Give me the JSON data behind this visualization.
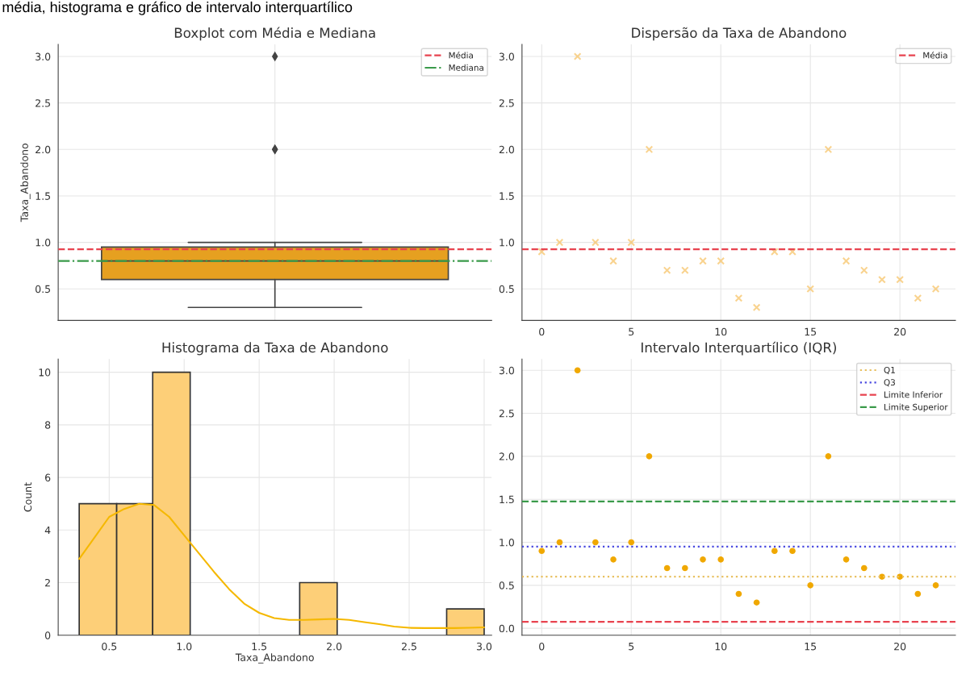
{
  "chart_data": [
    {
      "type": "box",
      "title": "Boxplot com Média e Mediana",
      "ylabel": "Taxa_Abandono",
      "categories": [
        null
      ],
      "color": "#e6a020",
      "boxes": [
        {
          "low": 0.3,
          "q1": 0.6,
          "median": 0.8,
          "q3": 0.95,
          "high": 1.0,
          "outliers": [
            3.0,
            2.0,
            2.0
          ]
        }
      ],
      "ylim": [
        0.16,
        3.13
      ],
      "yticks": [
        0.5,
        {
          "value": 1,
          "label": "1.0"
        },
        1.5,
        {
          "value": 2,
          "label": "2.0"
        },
        2.5,
        {
          "value": 3,
          "label": "3.0"
        }
      ],
      "grid": true,
      "legend": "top right",
      "annotations": [
        "média, histograma e gráfico de intervalo interquartílico"
      ],
      "ref_lines": [
        {
          "axis": "y",
          "value": 0.926,
          "label": "Média",
          "color": "#e8434f",
          "line_style": "dashed"
        },
        {
          "axis": "y",
          "value": 0.8,
          "label": "Mediana",
          "color": "#3a9a4a",
          "line_style": "dashdot"
        }
      ]
    },
    {
      "type": "scatter",
      "title": "Dispersão da Taxa de Abandono",
      "marker": "cross",
      "color": "#f7c060",
      "x": [
        0,
        1,
        2,
        3,
        4,
        5,
        6,
        7,
        8,
        9,
        10,
        11,
        12,
        13,
        14,
        15,
        16,
        17,
        18,
        19,
        20,
        21,
        22
      ],
      "values": [
        0.9,
        1.0,
        3.0,
        1.0,
        0.8,
        1.0,
        2.0,
        0.7,
        0.7,
        0.8,
        0.8,
        0.4,
        0.3,
        0.9,
        0.9,
        0.5,
        2.0,
        0.8,
        0.7,
        0.6,
        0.6,
        0.4,
        0.5
      ],
      "xlim": [
        -1.1,
        23.1
      ],
      "xticks": [
        0,
        5,
        10,
        15,
        20
      ],
      "ylim": [
        0.16,
        3.13
      ],
      "yticks": [
        0.5,
        {
          "value": 1,
          "label": "1.0"
        },
        1.5,
        {
          "value": 2,
          "label": "2.0"
        },
        2.5,
        {
          "value": 3,
          "label": "3.0"
        }
      ],
      "grid": true,
      "legend": "top right",
      "ref_lines": [
        {
          "axis": "y",
          "value": 0.926,
          "label": "Média",
          "color": "#e8434f",
          "line_style": "dashed"
        }
      ]
    },
    {
      "type": "histogram",
      "title": "Histograma da Taxa de Abandono",
      "xlabel": "Taxa_Abandono",
      "ylabel": "Count",
      "color": "#fdcf78",
      "bins": [
        0.3,
        0.55,
        0.79,
        1.04,
        1.77,
        2.02,
        2.75,
        3.0
      ],
      "values": [
        5,
        5,
        10,
        0,
        2,
        0,
        1
      ],
      "series": [
        {
          "type": "line",
          "color": "#f5b800",
          "x": [
            0.3,
            0.4,
            0.5,
            0.6,
            0.7,
            0.8,
            0.9,
            1.0,
            1.1,
            1.2,
            1.3,
            1.4,
            1.5,
            1.6,
            1.7,
            1.8,
            1.9,
            2.0,
            2.1,
            2.2,
            2.3,
            2.4,
            2.5,
            2.6,
            2.7,
            2.8,
            2.9,
            3.0
          ],
          "values": [
            2.9,
            3.7,
            4.5,
            4.8,
            5.0,
            4.95,
            4.5,
            3.8,
            3.1,
            2.4,
            1.75,
            1.2,
            0.85,
            0.65,
            0.58,
            0.58,
            0.6,
            0.62,
            0.58,
            0.5,
            0.42,
            0.33,
            0.28,
            0.27,
            0.27,
            0.27,
            0.28,
            0.3
          ]
        }
      ],
      "xlim": [
        0.16,
        3.05
      ],
      "xticks": [
        0.5,
        {
          "value": 1,
          "label": "1.0"
        },
        1.5,
        {
          "value": 2,
          "label": "2.0"
        },
        2.5,
        {
          "value": 3,
          "label": "3.0"
        }
      ],
      "ylim": [
        0,
        10.5
      ],
      "yticks": [
        0,
        2,
        4,
        6,
        8,
        10
      ],
      "grid": true
    },
    {
      "type": "scatter",
      "title": "Intervalo Interquartílico (IQR)",
      "marker": "circle",
      "color": "#f0a800",
      "x": [
        0,
        1,
        2,
        3,
        4,
        5,
        6,
        7,
        8,
        9,
        10,
        11,
        12,
        13,
        14,
        15,
        16,
        17,
        18,
        19,
        20,
        21,
        22
      ],
      "values": [
        0.9,
        1.0,
        3.0,
        1.0,
        0.8,
        1.0,
        2.0,
        0.7,
        0.7,
        0.8,
        0.8,
        0.4,
        0.3,
        0.9,
        0.9,
        0.5,
        2.0,
        0.8,
        0.7,
        0.6,
        0.6,
        0.4,
        0.5
      ],
      "xlim": [
        -1.1,
        23.1
      ],
      "xticks": [
        0,
        5,
        10,
        15,
        20
      ],
      "ylim": [
        -0.08,
        3.13
      ],
      "yticks": [
        {
          "value": 0,
          "label": "0.0"
        },
        0.5,
        {
          "value": 1,
          "label": "1.0"
        },
        1.5,
        {
          "value": 2,
          "label": "2.0"
        },
        2.5,
        {
          "value": 3,
          "label": "3.0"
        }
      ],
      "grid": true,
      "legend": "top right",
      "ref_lines": [
        {
          "axis": "y",
          "value": 0.6,
          "label": "Q1",
          "color": "#e8c060",
          "line_style": "dotted"
        },
        {
          "axis": "y",
          "value": 0.95,
          "label": "Q3",
          "color": "#4a4ae0",
          "line_style": "dotted"
        },
        {
          "axis": "y",
          "value": 0.075,
          "label": "Limite Inferior",
          "color": "#e8434f",
          "line_style": "dashed"
        },
        {
          "axis": "y",
          "value": 1.475,
          "label": "Limite Superior",
          "color": "#3a9a4a",
          "line_style": "dashed"
        }
      ]
    }
  ]
}
